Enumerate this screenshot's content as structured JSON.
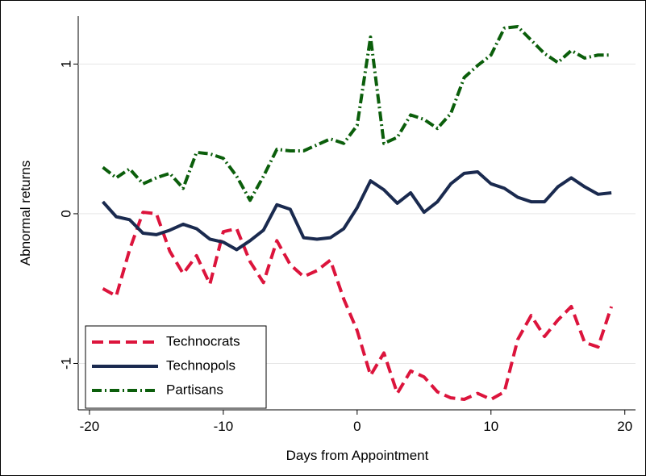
{
  "chart_data": {
    "type": "line",
    "xlabel": "Days from Appointment",
    "ylabel": "Abnormal returns",
    "x": [
      -19,
      -18,
      -17,
      -16,
      -15,
      -14,
      -13,
      -12,
      -11,
      -10,
      -9,
      -8,
      -7,
      -6,
      -5,
      -4,
      -3,
      -2,
      -1,
      0,
      1,
      2,
      3,
      4,
      5,
      6,
      7,
      8,
      9,
      10,
      11,
      12,
      13,
      14,
      15,
      16,
      17,
      18,
      19
    ],
    "series": [
      {
        "name": "Technocrats",
        "color": "#dc143c",
        "dash": "14 7",
        "values": [
          -0.5,
          -0.55,
          -0.24,
          0.01,
          0.0,
          -0.25,
          -0.4,
          -0.28,
          -0.47,
          -0.12,
          -0.1,
          -0.32,
          -0.46,
          -0.18,
          -0.34,
          -0.42,
          -0.38,
          -0.31,
          -0.57,
          -0.78,
          -1.08,
          -0.93,
          -1.2,
          -1.05,
          -1.09,
          -1.19,
          -1.23,
          -1.24,
          -1.2,
          -1.24,
          -1.19,
          -0.84,
          -0.68,
          -0.82,
          -0.71,
          -0.62,
          -0.86,
          -0.89,
          -0.62
        ]
      },
      {
        "name": "Technopols",
        "color": "#1a2a4f",
        "dash": "none",
        "values": [
          0.08,
          -0.02,
          -0.04,
          -0.13,
          -0.14,
          -0.11,
          -0.07,
          -0.1,
          -0.17,
          -0.19,
          -0.24,
          -0.18,
          -0.11,
          0.06,
          0.03,
          -0.16,
          -0.17,
          -0.16,
          -0.1,
          0.04,
          0.22,
          0.16,
          0.07,
          0.14,
          0.01,
          0.08,
          0.2,
          0.27,
          0.28,
          0.2,
          0.17,
          0.11,
          0.08,
          0.08,
          0.18,
          0.24,
          0.18,
          0.13,
          0.14
        ]
      },
      {
        "name": "Partisans",
        "color": "#0b5e0b",
        "dash": "12 4 2 4",
        "values": [
          0.31,
          0.24,
          0.3,
          0.2,
          0.24,
          0.27,
          0.17,
          0.41,
          0.4,
          0.37,
          0.25,
          0.09,
          0.25,
          0.43,
          0.42,
          0.42,
          0.46,
          0.5,
          0.47,
          0.59,
          1.18,
          0.47,
          0.51,
          0.66,
          0.63,
          0.57,
          0.67,
          0.91,
          0.99,
          1.06,
          1.24,
          1.25,
          1.16,
          1.07,
          1.01,
          1.09,
          1.04,
          1.06,
          1.06
        ]
      }
    ],
    "xlim": [
      -20.84,
      20.8
    ],
    "xticks": [
      -20,
      -10,
      0,
      10,
      20
    ],
    "ylim": [
      -1.31,
      1.32
    ],
    "yticks": [
      -1,
      0,
      1
    ],
    "grid": true,
    "legend": "lower left"
  }
}
